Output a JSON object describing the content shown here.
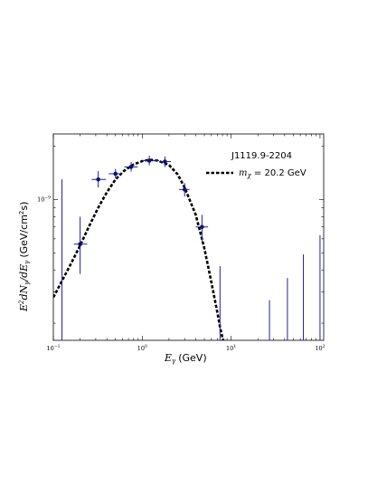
{
  "chart_data": {
    "type": "scatter",
    "title": "",
    "xlabel": {
      "symbol": "E",
      "sub": "γ",
      "unit": "(GeV)"
    },
    "ylabel": {
      "prefix": "E",
      "sup": "2",
      "mid": "dN",
      "sub1": "γ",
      "slash": "/dE",
      "sub2": "γ",
      "unit": "(GeV/cm",
      "unit_sup": "2",
      "unit_end": "s)"
    },
    "xscale": "log",
    "yscale": "log",
    "xlim": [
      0.1,
      110
    ],
    "ylim": [
      1.6e-10,
      2.35e-09
    ],
    "x_ticks": [
      {
        "base": "10",
        "exp": "−1",
        "value": 0.1
      },
      {
        "base": "10",
        "exp": "0",
        "value": 1
      },
      {
        "base": "10",
        "exp": "1",
        "value": 10
      },
      {
        "base": "10",
        "exp": "2",
        "value": 100
      }
    ],
    "y_ticks": [
      {
        "base": "10",
        "exp": "−9",
        "value": 1e-09
      }
    ],
    "legend": {
      "title": "J1119.9-2204",
      "position": "top-right",
      "entries": [
        {
          "style": "dashed",
          "color": "#000000",
          "label_symbol": "m",
          "label_sub": "χ",
          "label_text": " = 20.2 GeV"
        }
      ]
    },
    "series": [
      {
        "kind": "measured",
        "color": "#1f1fa8",
        "points": [
          {
            "x": 0.2,
            "y": 5.6e-10,
            "xerr": [
              0.17,
              0.24
            ],
            "yerr": [
              3.8e-10,
              8e-10
            ]
          },
          {
            "x": 0.32,
            "y": 1.3e-09,
            "xerr": [
              0.27,
              0.39
            ],
            "yerr": [
              1.17e-09,
              1.45e-09
            ]
          },
          {
            "x": 0.5,
            "y": 1.4e-09,
            "xerr": [
              0.42,
              0.6
            ],
            "yerr": [
              1.32e-09,
              1.49e-09
            ]
          },
          {
            "x": 0.75,
            "y": 1.53e-09,
            "xerr": [
              0.63,
              0.89
            ],
            "yerr": [
              1.44e-09,
              1.63e-09
            ]
          },
          {
            "x": 1.2,
            "y": 1.66e-09,
            "xerr": [
              1.0,
              1.55
            ],
            "yerr": [
              1.56e-09,
              1.77e-09
            ]
          },
          {
            "x": 1.8,
            "y": 1.64e-09,
            "xerr": [
              1.55,
              2.1
            ],
            "yerr": [
              1.53e-09,
              1.75e-09
            ]
          },
          {
            "x": 3.0,
            "y": 1.14e-09,
            "xerr": [
              2.6,
              3.4
            ],
            "yerr": [
              1.04e-09,
              1.24e-09
            ]
          },
          {
            "x": 4.7,
            "y": 7e-10,
            "xerr": [
              4.0,
              5.5
            ],
            "yerr": [
              5.8e-10,
              8.2e-10
            ]
          }
        ]
      },
      {
        "kind": "upper_limits",
        "color": "#1f1fa8",
        "points": [
          {
            "x": 0.125,
            "y_top": 1.3e-09
          },
          {
            "x": 7.5,
            "y_top": 4.2e-10
          },
          {
            "x": 27,
            "y_top": 2.7e-10
          },
          {
            "x": 43,
            "y_top": 3.6e-10
          },
          {
            "x": 65,
            "y_top": 4.9e-10
          },
          {
            "x": 100,
            "y_top": 6.3e-10
          }
        ]
      },
      {
        "kind": "model",
        "style": "dashed",
        "color": "#000000",
        "x": [
          0.1,
          0.13,
          0.16,
          0.2,
          0.25,
          0.32,
          0.4,
          0.5,
          0.63,
          0.8,
          1.0,
          1.2,
          1.5,
          2.0,
          2.5,
          3.0,
          4.0,
          5.0,
          6.0,
          7.0,
          7.5,
          8.0,
          8.6
        ],
        "y": [
          2.8e-10,
          3.6e-10,
          4.4e-10,
          5.5e-10,
          7e-10,
          9e-10,
          1.1e-09,
          1.3e-09,
          1.46e-09,
          1.58e-09,
          1.65e-09,
          1.68e-09,
          1.66e-09,
          1.57e-09,
          1.39e-09,
          1.17e-09,
          8.2e-10,
          5.3e-10,
          3.4e-10,
          2.3e-10,
          1.9e-10,
          1.65e-10,
          1.5e-10
        ]
      }
    ]
  }
}
